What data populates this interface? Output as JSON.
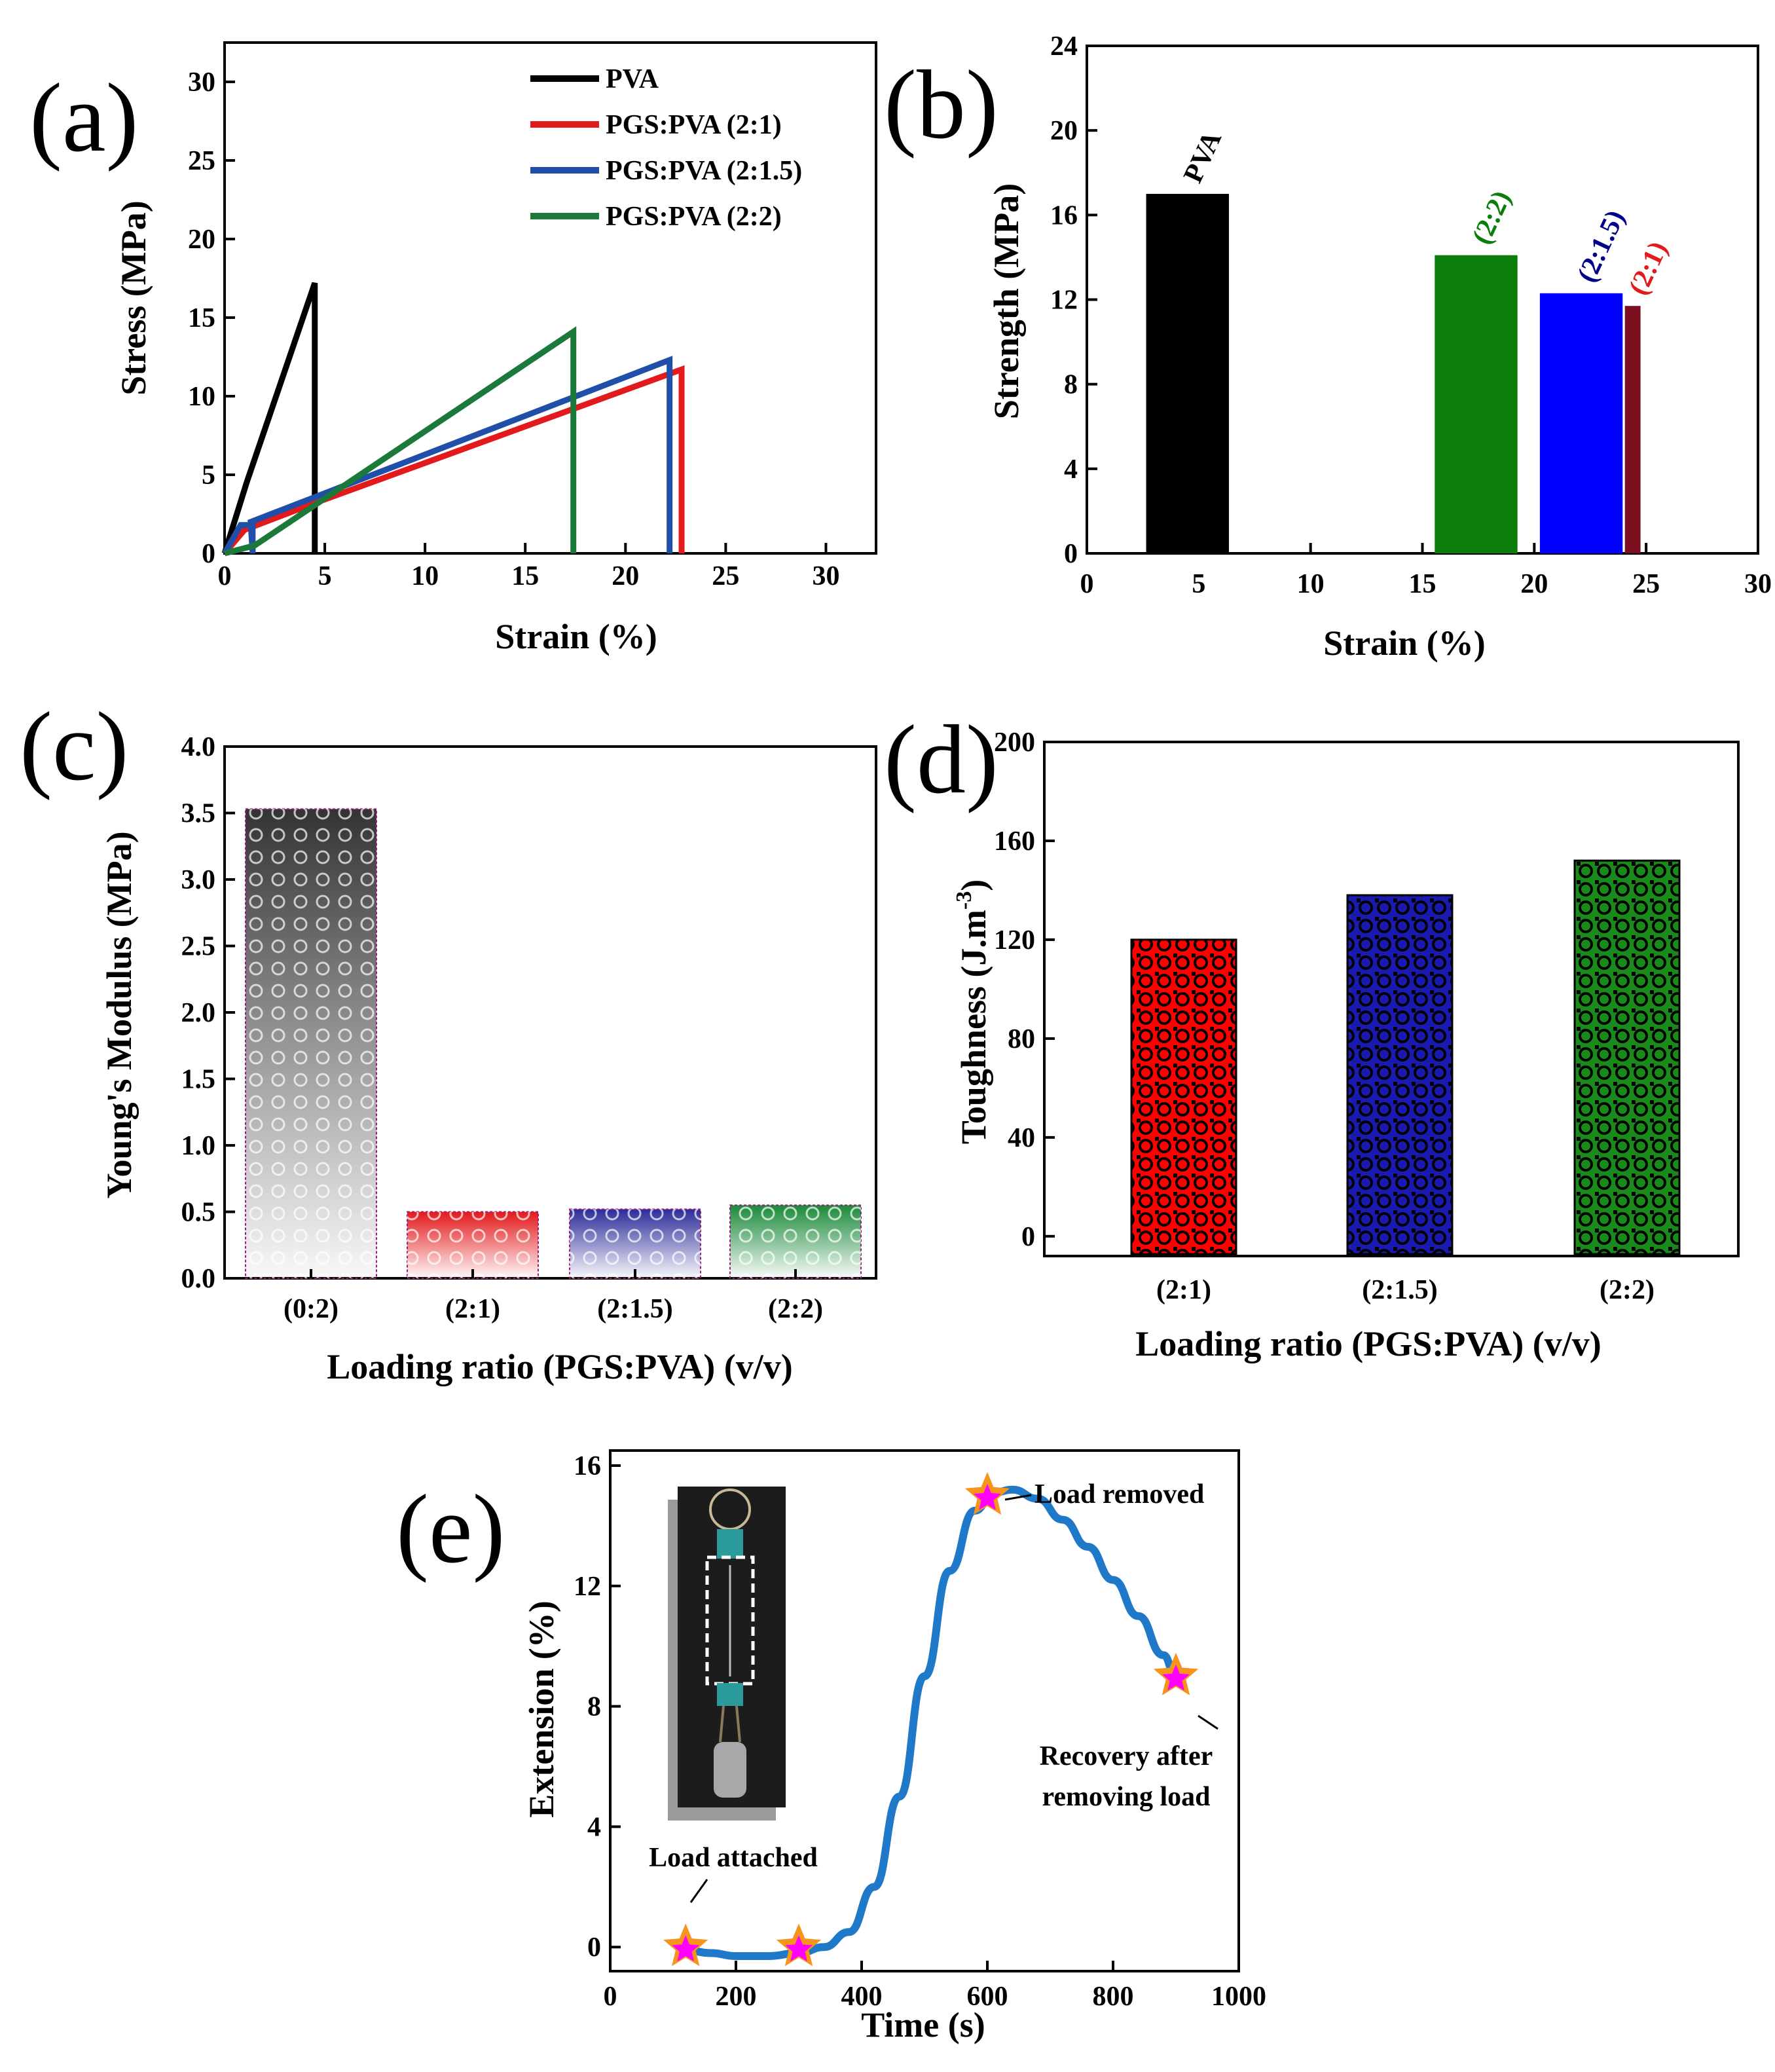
{
  "chart_data": [
    {
      "panel": "(a)",
      "type": "line",
      "xlabel": "Strain (%)",
      "ylabel": "Stress (MPa)",
      "xlim": [
        0,
        32.5
      ],
      "ylim": [
        0,
        32.5
      ],
      "xticks": [
        0,
        5,
        10,
        15,
        20,
        25,
        30
      ],
      "yticks": [
        0,
        5,
        10,
        15,
        20,
        25,
        30
      ],
      "legend_position": "top-right",
      "series": [
        {
          "name": "PVA",
          "color": "#000000",
          "x": [
            0,
            1.1,
            4.5,
            4.5
          ],
          "y": [
            0,
            4.5,
            17.2,
            0
          ]
        },
        {
          "name": "PGS:PVA (2:1)",
          "color": "#e31a1c",
          "x": [
            0,
            1,
            4.5,
            22.8,
            22.8
          ],
          "y": [
            0,
            1.5,
            3.2,
            11.7,
            0
          ]
        },
        {
          "name": "PGS:PVA (2:1.5)",
          "color": "#1f4fa8",
          "x": [
            0,
            0.8,
            1.4,
            1.4,
            1.3,
            22.2,
            22.2
          ],
          "y": [
            0,
            1.8,
            1.8,
            0,
            2.0,
            12.3,
            0
          ]
        },
        {
          "name": "PGS:PVA  (2:2)",
          "color": "#1b7a3a",
          "x": [
            0,
            1.5,
            17.4,
            17.4
          ],
          "y": [
            0,
            0.5,
            14.1,
            0
          ]
        }
      ]
    },
    {
      "panel": "(b)",
      "type": "bar",
      "xlabel": "Strain (%)",
      "ylabel": "Strength (MPa)",
      "xlim": [
        0,
        30
      ],
      "ylim": [
        0,
        24
      ],
      "xticks": [
        0,
        5,
        10,
        15,
        20,
        25,
        30
      ],
      "yticks": [
        0,
        4,
        8,
        12,
        16,
        20,
        24
      ],
      "bars": [
        {
          "label": "PVA",
          "x_center": 4.5,
          "width": 3.7,
          "value": 17.0,
          "color": "#000000",
          "label_color": "#000000"
        },
        {
          "label": "(2:2)",
          "x_center": 17.4,
          "width": 3.7,
          "value": 14.1,
          "color": "#0a7d0a",
          "label_color": "#0a7d0a"
        },
        {
          "label": "(2:1.5)",
          "x_center": 22.1,
          "width": 3.7,
          "value": 12.3,
          "color": "#0000ff",
          "label_color": "#00008b"
        },
        {
          "label": "(2:1)",
          "x_center": 24.4,
          "width": 0.7,
          "value": 11.7,
          "color": "#7a1020",
          "label_color": "#e31a1c"
        }
      ]
    },
    {
      "panel": "(c)",
      "type": "bar",
      "xlabel": "Loading ratio (PGS:PVA) (v/v)",
      "ylabel": "Young's Modulus (MPa)",
      "ylim": [
        0,
        4.0
      ],
      "yticks": [
        "0.0",
        "0.5",
        "1.0",
        "1.5",
        "2.0",
        "2.5",
        "3.0",
        "3.5",
        "4.0"
      ],
      "categories": [
        "(0:2)",
        "(2:1)",
        "(2:1.5)",
        "(2:2)"
      ],
      "values": [
        3.53,
        0.5,
        0.52,
        0.55
      ],
      "colors": [
        "#333333",
        "#e31a1c",
        "#2c2c9a",
        "#1b8a3a"
      ]
    },
    {
      "panel": "(d)",
      "type": "bar",
      "xlabel": "Loading ratio (PGS:PVA) (v/v)",
      "ylabel": "Toughness (J.m-3)",
      "ylim": [
        -8,
        200
      ],
      "yticks": [
        0,
        40,
        80,
        120,
        160,
        200
      ],
      "categories": [
        "(2:1)",
        "(2:1.5)",
        "(2:2)"
      ],
      "values": [
        120,
        138,
        152
      ],
      "colors": [
        "#ff0000",
        "#1a1ab0",
        "#1a8a1a"
      ]
    },
    {
      "panel": "(e)",
      "type": "line",
      "xlabel": "Time (s)",
      "ylabel": "Extension (%)",
      "xlim": [
        0,
        1000
      ],
      "ylim": [
        -0.8,
        16.5
      ],
      "xticks": [
        0,
        200,
        400,
        600,
        800,
        1000
      ],
      "yticks": [
        0,
        4,
        8,
        12,
        16
      ],
      "series": [
        {
          "name": "Extension",
          "color": "#1f78c8",
          "x": [
            120,
            160,
            200,
            250,
            300,
            340,
            380,
            420,
            460,
            500,
            540,
            580,
            610,
            640,
            680,
            720,
            760,
            800,
            840,
            880,
            900
          ],
          "y": [
            -0.1,
            -0.2,
            -0.3,
            -0.3,
            -0.2,
            0.0,
            0.5,
            2.0,
            5.0,
            9.0,
            12.5,
            14.5,
            15.1,
            15.2,
            14.9,
            14.2,
            13.3,
            12.2,
            11.0,
            9.7,
            9.0
          ]
        }
      ],
      "markers": [
        {
          "x": 120,
          "y": 0
        },
        {
          "x": 300,
          "y": 0
        },
        {
          "x": 600,
          "y": 15
        },
        {
          "x": 900,
          "y": 9
        }
      ],
      "annotations": {
        "load_attached": "Load attached",
        "load_removed": "Load removed",
        "recovery_line1": "Recovery after",
        "recovery_line2": "removing load"
      }
    }
  ],
  "marker_colors": {
    "outer": "#f7941d",
    "inner": "#ff00ff"
  },
  "ylabel_d_base": "Toughness (J.m",
  "ylabel_d_sup": "-3",
  "ylabel_d_end": ")"
}
